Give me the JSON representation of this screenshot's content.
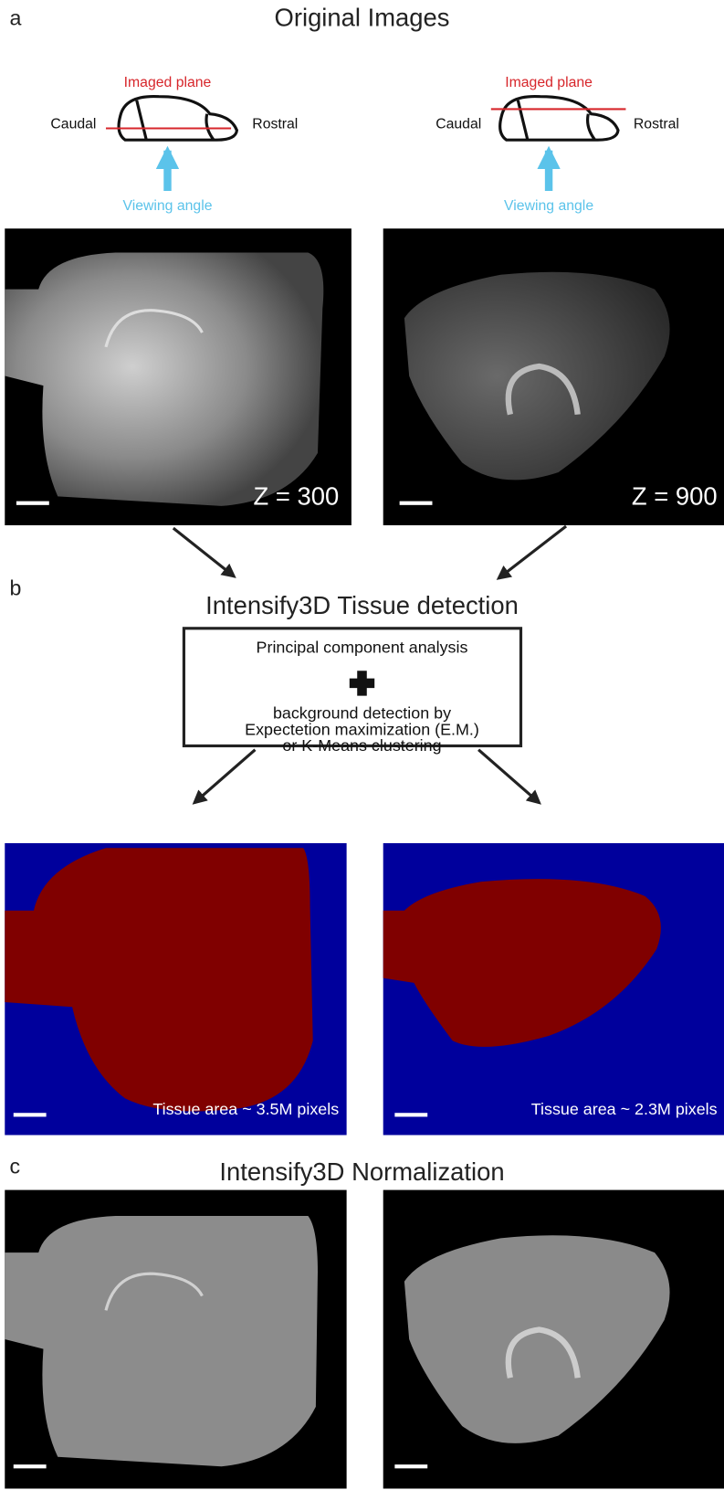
{
  "panels": [
    {
      "label": "a",
      "title": "Original Images",
      "schematics": [
        {
          "imaged_plane": "Imaged plane",
          "caudal": "Caudal",
          "rostral": "Rostral",
          "viewing_angle": "Viewing angle"
        },
        {
          "imaged_plane": "Imaged plane",
          "caudal": "Caudal",
          "rostral": "Rostral",
          "viewing_angle": "Viewing angle"
        }
      ],
      "images": [
        {
          "label": "Z = 300"
        },
        {
          "label": "Z = 900"
        }
      ]
    },
    {
      "label": "b",
      "title": "Intensify3D Tissue detection",
      "box": [
        "Principal component analysis",
        "background detection by",
        "Expectetion maximization (E.M.)",
        "or K-Means clustering"
      ],
      "images": [
        {
          "label": "Tissue area ~ 3.5M pixels"
        },
        {
          "label": "Tissue area ~ 2.3M pixels"
        }
      ]
    },
    {
      "label": "c",
      "title": "Intensify3D Normalization"
    }
  ]
}
